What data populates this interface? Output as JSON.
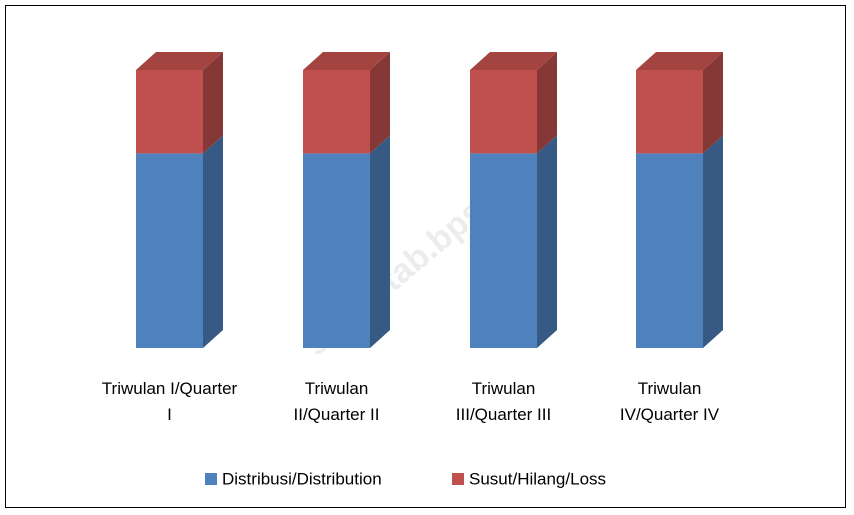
{
  "chart_data": {
    "type": "bar3d_stacked",
    "categories": [
      "Triwulan I/Quarter I",
      "Triwulan II/Quarter II",
      "Triwulan III/Quarter III",
      "Triwulan IV/Quarter IV"
    ],
    "series": [
      {
        "name": "Distribusi/Distribution",
        "color": "#4f81bd",
        "values": [
          70,
          70,
          70,
          70
        ]
      },
      {
        "name": "Susut/Hilang/Loss",
        "color": "#c0504d",
        "values": [
          30,
          30,
          30,
          30
        ]
      }
    ],
    "watermark": "simuntab.bps.go.id"
  }
}
